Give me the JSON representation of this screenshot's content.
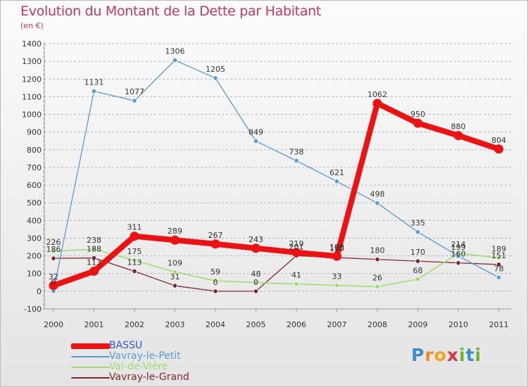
{
  "title": "Evolution du Montant de la Dette par Habitant",
  "subtitle": "(en €)",
  "logo": {
    "letters": [
      "P",
      "r",
      "o",
      "x",
      "i",
      "t",
      "i"
    ],
    "colors": [
      "#3b8ed0",
      "#f18a1c",
      "#f4a11c",
      "#d8354a",
      "#69b72f",
      "#3b8ed0",
      "#69b72f"
    ]
  },
  "chart_data": {
    "type": "line",
    "x": [
      "2000",
      "2001",
      "2002",
      "2003",
      "2004",
      "2005",
      "2006",
      "2007",
      "2008",
      "2009",
      "2010",
      "2011"
    ],
    "ylim": [
      -100,
      1400
    ],
    "yticks": [
      -100,
      0,
      100,
      200,
      300,
      400,
      500,
      600,
      700,
      800,
      900,
      1000,
      1100,
      1200,
      1300,
      1400
    ],
    "grid": "horizontal dashed",
    "legend": "bottom-left",
    "series": [
      {
        "name": "BASSU",
        "color": "#ee1111",
        "width": 8,
        "values": [
          32,
          113,
          311,
          289,
          267,
          243,
          219,
          198,
          1062,
          950,
          880,
          804
        ]
      },
      {
        "name": "Vavray-le-Petit",
        "color": "#5a9bd0",
        "width": 1.3,
        "values": [
          0,
          1131,
          1077,
          1306,
          1205,
          849,
          738,
          621,
          498,
          335,
          199,
          78
        ]
      },
      {
        "name": "Val-de-Vière",
        "color": "#9cdd6a",
        "width": 1.5,
        "values": [
          226,
          238,
          175,
          109,
          59,
          48,
          41,
          33,
          26,
          68,
          214,
          189
        ]
      },
      {
        "name": "Vavray-le-Grand",
        "color": "#7a2a2a",
        "width": 1.3,
        "values": [
          186,
          188,
          113,
          31,
          0,
          0,
          201,
          190,
          180,
          170,
          160,
          151
        ]
      }
    ]
  }
}
